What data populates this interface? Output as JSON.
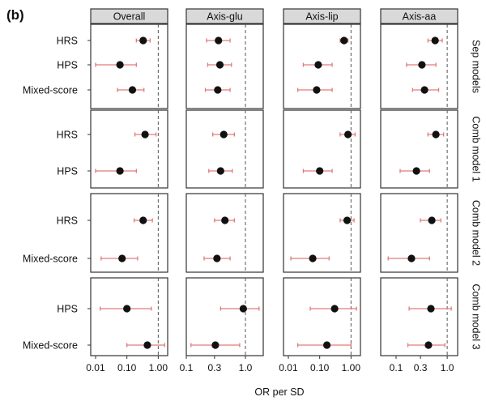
{
  "panel_label": "(b)",
  "chart_data": {
    "type": "scatter",
    "subtype": "forest-plot-facet-grid",
    "xlabel": "OR per SD",
    "x_scale": "log",
    "columns": [
      {
        "name": "Overall",
        "xlim": [
          0.007,
          2.0
        ],
        "ticks": [
          0.01,
          0.1,
          1.0
        ],
        "tick_labels": [
          "0.01",
          "0.10",
          "1.00"
        ]
      },
      {
        "name": "Axis-glu",
        "xlim": [
          0.1,
          2.0
        ],
        "ticks": [
          0.1,
          0.3,
          1.0
        ],
        "tick_labels": [
          "0.1",
          "0.3",
          "1.0"
        ]
      },
      {
        "name": "Axis-lip",
        "xlim": [
          0.007,
          2.0
        ],
        "ticks": [
          0.01,
          0.1,
          1.0
        ],
        "tick_labels": [
          "0.01",
          "0.10",
          "1.00"
        ]
      },
      {
        "name": "Axis-aa",
        "xlim": [
          0.05,
          1.6
        ],
        "ticks": [
          0.1,
          0.3,
          1.0
        ],
        "tick_labels": [
          "0.1",
          "0.3",
          "1.0"
        ]
      }
    ],
    "reference_line": 1.0,
    "rows": [
      {
        "name": "Sep models",
        "labels": [
          "HRS",
          "HPS",
          "Mixed-score"
        ],
        "estimates": [
          [
            {
              "or": 0.33,
              "lo": 0.2,
              "hi": 0.55
            },
            {
              "or": 0.35,
              "lo": 0.22,
              "hi": 0.55
            },
            {
              "or": 0.6,
              "lo": 0.45,
              "hi": 0.8
            },
            {
              "or": 0.58,
              "lo": 0.42,
              "hi": 0.8
            }
          ],
          [
            {
              "or": 0.06,
              "lo": 0.01,
              "hi": 0.2
            },
            {
              "or": 0.37,
              "lo": 0.23,
              "hi": 0.58
            },
            {
              "or": 0.09,
              "lo": 0.03,
              "hi": 0.25
            },
            {
              "or": 0.32,
              "lo": 0.16,
              "hi": 0.6
            }
          ],
          [
            {
              "or": 0.15,
              "lo": 0.05,
              "hi": 0.35
            },
            {
              "or": 0.34,
              "lo": 0.21,
              "hi": 0.55
            },
            {
              "or": 0.08,
              "lo": 0.02,
              "hi": 0.25
            },
            {
              "or": 0.36,
              "lo": 0.21,
              "hi": 0.68
            }
          ]
        ]
      },
      {
        "name": "Comb model 1",
        "labels": [
          "HRS",
          "HPS"
        ],
        "estimates": [
          [
            {
              "or": 0.38,
              "lo": 0.18,
              "hi": 0.85
            },
            {
              "or": 0.43,
              "lo": 0.28,
              "hi": 0.65
            },
            {
              "or": 0.8,
              "lo": 0.45,
              "hi": 1.35
            },
            {
              "or": 0.6,
              "lo": 0.42,
              "hi": 0.85
            }
          ],
          [
            {
              "or": 0.06,
              "lo": 0.01,
              "hi": 0.2
            },
            {
              "or": 0.38,
              "lo": 0.24,
              "hi": 0.6
            },
            {
              "or": 0.1,
              "lo": 0.03,
              "hi": 0.25
            },
            {
              "or": 0.25,
              "lo": 0.12,
              "hi": 0.45
            }
          ]
        ]
      },
      {
        "name": "Comb model 2",
        "labels": [
          "HRS",
          "Mixed-score"
        ],
        "estimates": [
          [
            {
              "or": 0.33,
              "lo": 0.17,
              "hi": 0.65
            },
            {
              "or": 0.45,
              "lo": 0.3,
              "hi": 0.65
            },
            {
              "or": 0.75,
              "lo": 0.45,
              "hi": 1.25
            },
            {
              "or": 0.5,
              "lo": 0.3,
              "hi": 0.75
            }
          ],
          [
            {
              "or": 0.07,
              "lo": 0.015,
              "hi": 0.22
            },
            {
              "or": 0.33,
              "lo": 0.2,
              "hi": 0.55
            },
            {
              "or": 0.06,
              "lo": 0.012,
              "hi": 0.2
            },
            {
              "or": 0.2,
              "lo": 0.07,
              "hi": 0.45
            }
          ]
        ]
      },
      {
        "name": "Comb model 3",
        "labels": [
          "HPS",
          "Mixed-score"
        ],
        "estimates": [
          [
            {
              "or": 0.1,
              "lo": 0.014,
              "hi": 0.6
            },
            {
              "or": 0.92,
              "lo": 0.38,
              "hi": 1.7
            },
            {
              "or": 0.3,
              "lo": 0.05,
              "hi": 1.5
            },
            {
              "or": 0.48,
              "lo": 0.18,
              "hi": 1.2
            }
          ],
          [
            {
              "or": 0.45,
              "lo": 0.1,
              "hi": 1.6
            },
            {
              "or": 0.31,
              "lo": 0.12,
              "hi": 0.8
            },
            {
              "or": 0.17,
              "lo": 0.02,
              "hi": 1.0
            },
            {
              "or": 0.43,
              "lo": 0.17,
              "hi": 0.9
            }
          ]
        ]
      }
    ],
    "colors": {
      "point": "#111111",
      "ci": "#e07a7a",
      "strip_fill": "#d9d9d9",
      "ref_line": "#555555",
      "frame": "#333333"
    }
  }
}
